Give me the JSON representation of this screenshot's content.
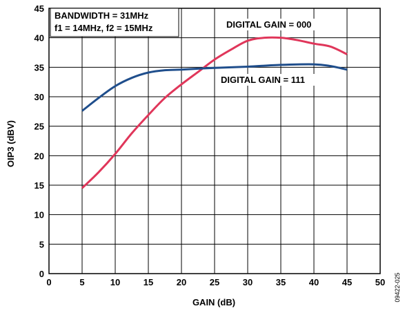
{
  "chart_data": {
    "type": "line",
    "xlabel": "GAIN (dB)",
    "ylabel": "OIP3 (dBV)",
    "xlim": [
      0,
      50
    ],
    "ylim": [
      0,
      45
    ],
    "x_ticks": [
      0,
      5,
      10,
      15,
      20,
      25,
      30,
      35,
      40,
      45,
      50
    ],
    "y_ticks": [
      0,
      5,
      10,
      15,
      20,
      25,
      30,
      35,
      40,
      45
    ],
    "x_tick_labels": [
      "0",
      "5",
      "10",
      "15",
      "20",
      "25",
      "30",
      "35",
      "40",
      "45",
      "50"
    ],
    "y_tick_labels": [
      "0",
      "5",
      "10",
      "15",
      "20",
      "25",
      "30",
      "35",
      "40",
      "45"
    ],
    "grid": true,
    "legend": "none",
    "annotations": [
      "BANDWIDTH = 31MHz",
      "f1 = 14MHz, f2 = 15MHz",
      "DIGITAL GAIN = 000",
      "DIGITAL GAIN = 111"
    ],
    "series": [
      {
        "label": "DIGITAL GAIN = 000",
        "color": "#e0365a",
        "x": [
          5,
          7.5,
          10,
          12.5,
          15,
          17.5,
          20,
          22.5,
          25,
          27.5,
          30,
          32.5,
          35,
          37.5,
          40,
          42.5,
          45
        ],
        "y": [
          14.5,
          17.2,
          20.3,
          23.8,
          26.9,
          29.8,
          32.1,
          34.2,
          36.3,
          38.0,
          39.5,
          40.0,
          40.0,
          39.6,
          39.0,
          38.5,
          37.2
        ]
      },
      {
        "label": "DIGITAL GAIN = 111",
        "color": "#1f4e8c",
        "x": [
          5,
          7.5,
          10,
          12.5,
          15,
          17.5,
          20,
          25,
          30,
          35,
          40,
          42.5,
          45
        ],
        "y": [
          27.6,
          29.8,
          31.8,
          33.2,
          34.1,
          34.5,
          34.6,
          34.9,
          35.1,
          35.4,
          35.5,
          35.2,
          34.6
        ]
      }
    ]
  },
  "figure_id": "09422-025"
}
